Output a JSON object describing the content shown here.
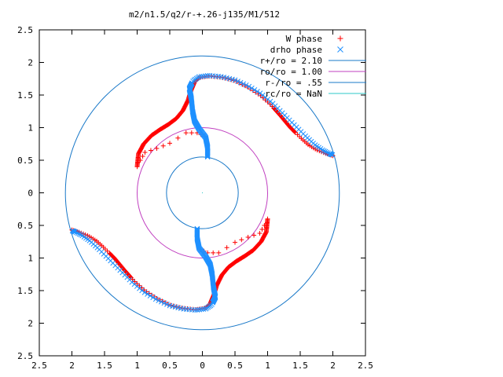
{
  "chart_data": {
    "type": "scatter",
    "title": "m2/n1.5/q2/r-+.26-j135/M1/512",
    "xlabel": "",
    "ylabel": "",
    "xlim": [
      -2.5,
      2.5
    ],
    "ylim": [
      -2.5,
      2.5
    ],
    "x_ticks": [
      -2.5,
      -2,
      -1.5,
      -1,
      -0.5,
      0,
      0.5,
      1,
      1.5,
      2,
      2.5
    ],
    "y_ticks": [
      2.5,
      2,
      1.5,
      1,
      0.5,
      0,
      -0.5,
      -1,
      -1.5,
      -2,
      -2.5
    ],
    "x_tick_labels": [
      "2.5",
      "2",
      "1.5",
      "1",
      "0.5",
      "0",
      "0.5",
      "1",
      "1.5",
      "2",
      "2.5"
    ],
    "y_tick_labels": [
      "2.5",
      "2",
      "1.5",
      "1",
      "0.5",
      "0",
      "0.5",
      "1",
      "1.5",
      "2",
      "2.5"
    ],
    "grid": false,
    "legend_position": "top-right",
    "series": [
      {
        "name": "W phase",
        "marker": "plus",
        "color": "#ff0000",
        "arms": [
          [
            [
              -1.0,
              0.4
            ],
            [
              -0.98,
              0.6
            ],
            [
              -0.9,
              0.75
            ],
            [
              -0.78,
              0.88
            ],
            [
              -0.65,
              0.97
            ],
            [
              -0.52,
              1.05
            ],
            [
              -0.4,
              1.14
            ],
            [
              -0.3,
              1.26
            ],
            [
              -0.22,
              1.42
            ],
            [
              -0.17,
              1.58
            ],
            [
              -0.12,
              1.7
            ],
            [
              -0.05,
              1.77
            ],
            [
              0.1,
              1.79
            ],
            [
              0.3,
              1.77
            ],
            [
              0.5,
              1.72
            ],
            [
              0.7,
              1.62
            ],
            [
              0.88,
              1.5
            ],
            [
              1.05,
              1.35
            ],
            [
              1.2,
              1.18
            ],
            [
              1.35,
              1.0
            ],
            [
              1.5,
              0.85
            ],
            [
              1.62,
              0.74
            ],
            [
              1.75,
              0.66
            ],
            [
              1.9,
              0.6
            ],
            [
              2.0,
              0.57
            ]
          ],
          [
            [
              1.0,
              -0.4
            ],
            [
              0.98,
              -0.6
            ],
            [
              0.9,
              -0.75
            ],
            [
              0.78,
              -0.88
            ],
            [
              0.65,
              -0.97
            ],
            [
              0.52,
              -1.05
            ],
            [
              0.4,
              -1.14
            ],
            [
              0.3,
              -1.26
            ],
            [
              0.22,
              -1.42
            ],
            [
              0.17,
              -1.58
            ],
            [
              0.12,
              -1.7
            ],
            [
              0.05,
              -1.77
            ],
            [
              -0.1,
              -1.79
            ],
            [
              -0.3,
              -1.77
            ],
            [
              -0.5,
              -1.72
            ],
            [
              -0.7,
              -1.62
            ],
            [
              -0.88,
              -1.5
            ],
            [
              -1.05,
              -1.35
            ],
            [
              -1.2,
              -1.18
            ],
            [
              -1.35,
              -1.0
            ],
            [
              -1.5,
              -0.85
            ],
            [
              -1.62,
              -0.74
            ],
            [
              -1.75,
              -0.66
            ],
            [
              -1.9,
              -0.6
            ],
            [
              -2.0,
              -0.57
            ]
          ]
        ],
        "inner": [
          [
            [
              -0.95,
              0.5
            ],
            [
              -0.88,
              0.62
            ],
            [
              -0.7,
              0.68
            ],
            [
              -0.5,
              0.76
            ],
            [
              -0.25,
              0.92
            ],
            [
              -0.08,
              0.92
            ],
            [
              0.03,
              0.87
            ]
          ],
          [
            [
              0.95,
              -0.5
            ],
            [
              0.88,
              -0.62
            ],
            [
              0.7,
              -0.68
            ],
            [
              0.5,
              -0.76
            ],
            [
              0.25,
              -0.92
            ],
            [
              0.08,
              -0.92
            ],
            [
              -0.03,
              -0.87
            ]
          ]
        ]
      },
      {
        "name": "drho phase",
        "marker": "cross",
        "color": "#1e90ff",
        "arms": [
          [
            [
              0.08,
              0.55
            ],
            [
              0.08,
              0.7
            ],
            [
              0.05,
              0.85
            ],
            [
              -0.05,
              0.98
            ],
            [
              -0.12,
              1.1
            ],
            [
              -0.15,
              1.25
            ],
            [
              -0.17,
              1.45
            ],
            [
              -0.2,
              1.6
            ],
            [
              -0.14,
              1.72
            ],
            [
              -0.05,
              1.78
            ],
            [
              0.1,
              1.8
            ],
            [
              0.3,
              1.78
            ],
            [
              0.5,
              1.73
            ],
            [
              0.7,
              1.64
            ],
            [
              0.9,
              1.52
            ],
            [
              1.08,
              1.37
            ],
            [
              1.25,
              1.2
            ],
            [
              1.42,
              1.03
            ],
            [
              1.58,
              0.87
            ],
            [
              1.72,
              0.74
            ],
            [
              1.85,
              0.65
            ],
            [
              1.95,
              0.6
            ],
            [
              2.0,
              0.58
            ]
          ],
          [
            [
              -0.08,
              -0.55
            ],
            [
              -0.08,
              -0.7
            ],
            [
              -0.05,
              -0.85
            ],
            [
              0.05,
              -0.98
            ],
            [
              0.12,
              -1.1
            ],
            [
              0.15,
              -1.25
            ],
            [
              0.17,
              -1.45
            ],
            [
              0.2,
              -1.6
            ],
            [
              0.14,
              -1.72
            ],
            [
              0.05,
              -1.78
            ],
            [
              -0.1,
              -1.8
            ],
            [
              -0.3,
              -1.78
            ],
            [
              -0.5,
              -1.73
            ],
            [
              -0.7,
              -1.64
            ],
            [
              -0.9,
              -1.52
            ],
            [
              -1.08,
              -1.37
            ],
            [
              -1.25,
              -1.2
            ],
            [
              -1.42,
              -1.03
            ],
            [
              -1.58,
              -0.87
            ],
            [
              -1.72,
              -0.74
            ],
            [
              -1.85,
              -0.65
            ],
            [
              -1.95,
              -0.6
            ],
            [
              -2.0,
              -0.58
            ]
          ]
        ]
      },
      {
        "name": "r+/ro = 2.10",
        "radius": 2.1,
        "color": "#1878c8"
      },
      {
        "name": "ro/ro = 1.00",
        "radius": 1.0,
        "color": "#c040c0"
      },
      {
        "name": "r-/ro = .55",
        "radius": 0.55,
        "color": "#1878c8"
      },
      {
        "name": "rc/ro = NaN",
        "radius": null,
        "color": "#2ec8c8"
      }
    ]
  }
}
